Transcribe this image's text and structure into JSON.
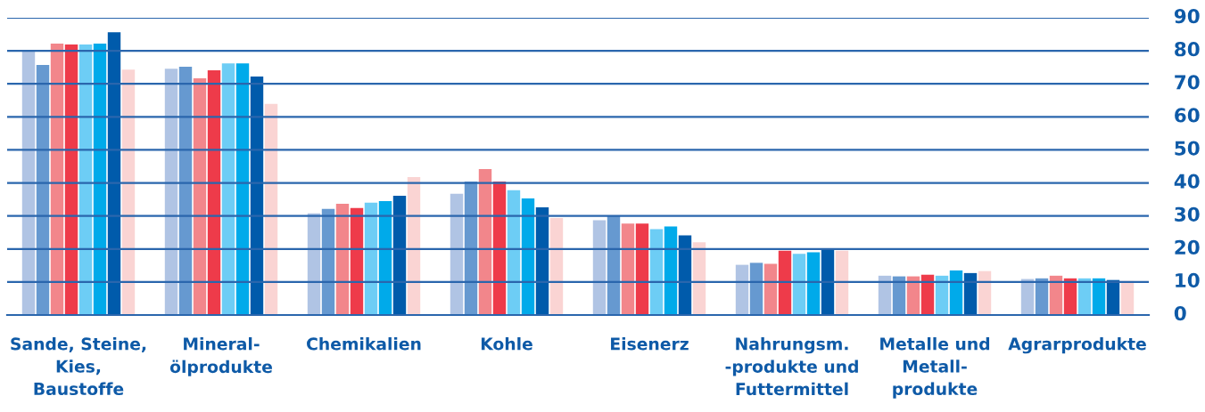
{
  "chart_data": {
    "type": "bar",
    "categories": [
      "Sande, Steine,\nKies,\nBaustoffe",
      "Mineral-\nölprodukte",
      "Chemikalien",
      "Kohle",
      "Eisenerz",
      "Nahrungsm.\n-produkte und\nFuttermittel",
      "Metalle und\nMetall-\nprodukte",
      "Agrarprodukte"
    ],
    "series": [
      {
        "color": "#b0c4e4",
        "values": [
          80.0,
          74.6,
          30.8,
          36.7,
          28.7,
          15.2,
          11.9,
          10.9
        ]
      },
      {
        "color": "#6699d0",
        "values": [
          75.7,
          75.2,
          32.1,
          40.4,
          30.0,
          15.8,
          11.7,
          11.1
        ]
      },
      {
        "color": "#f2868b",
        "values": [
          82.2,
          71.7,
          33.7,
          44.2,
          27.7,
          15.5,
          11.7,
          11.9
        ]
      },
      {
        "color": "#ee3b4a",
        "values": [
          81.9,
          74.1,
          32.4,
          40.4,
          27.7,
          19.5,
          12.2,
          11.1
        ]
      },
      {
        "color": "#6dcdf5",
        "values": [
          81.9,
          76.2,
          34.0,
          37.8,
          26.0,
          18.5,
          11.9,
          11.1
        ]
      },
      {
        "color": "#00aaea",
        "values": [
          82.2,
          76.2,
          34.5,
          35.3,
          26.8,
          19.0,
          13.5,
          11.1
        ]
      },
      {
        "color": "#005bab",
        "values": [
          85.6,
          72.2,
          36.1,
          32.6,
          24.1,
          20.0,
          12.7,
          10.6
        ]
      },
      {
        "color": "#fad4d3",
        "values": [
          74.3,
          63.9,
          41.8,
          29.4,
          22.0,
          19.5,
          13.3,
          10.3
        ]
      }
    ],
    "ylim": [
      0,
      90
    ],
    "yticks": [
      0,
      10,
      20,
      30,
      40,
      50,
      60,
      70,
      80,
      90
    ],
    "grid": "y"
  }
}
